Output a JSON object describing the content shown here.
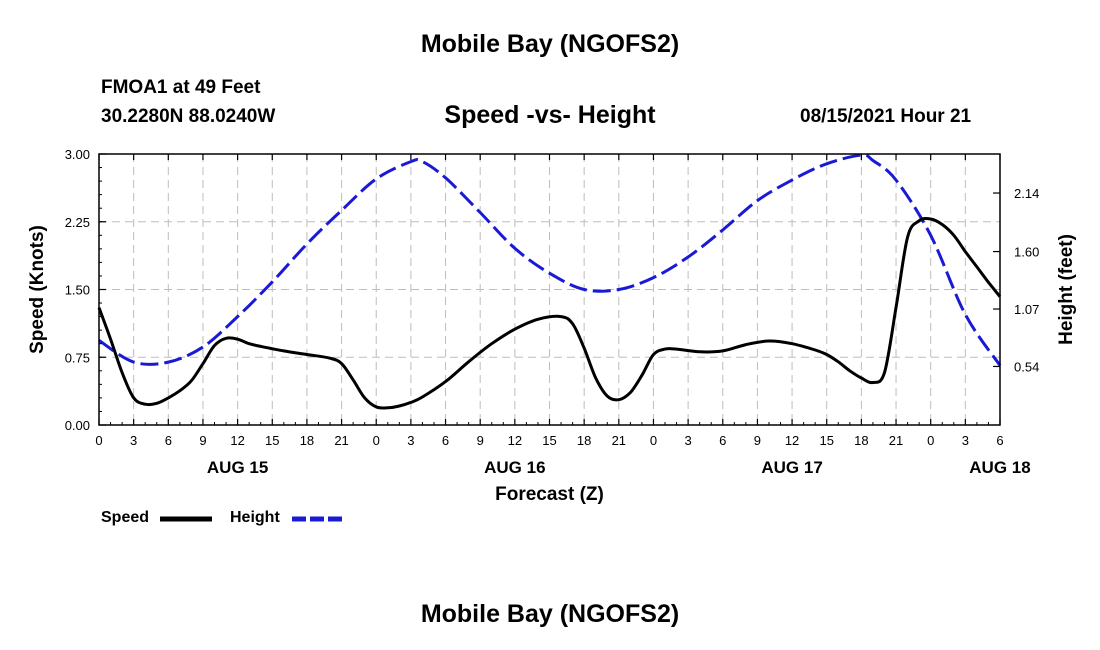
{
  "header": {
    "title": "Mobile Bay (NGOFS2)",
    "station": "FMOA1 at 49 Feet",
    "coords": "30.2280N  88.0240W",
    "subtitle": "Speed -vs- Height",
    "datetime": "08/15/2021 Hour 21",
    "footer_title": "Mobile Bay (NGOFS2)"
  },
  "chart_data": {
    "type": "line",
    "title": "Speed -vs- Height",
    "xlabel": "Forecast (Z)",
    "ylabel": "Speed (Knots)",
    "y2label": "Height (feet)",
    "x_range_hours": [
      0,
      78
    ],
    "x_start": "AUG 15 00Z",
    "x_tick_labels": [
      "0",
      "3",
      "6",
      "9",
      "12",
      "15",
      "18",
      "21",
      "0",
      "3",
      "6",
      "9",
      "12",
      "15",
      "18",
      "21",
      "0",
      "3",
      "6",
      "9",
      "12",
      "15",
      "18",
      "21",
      "0",
      "3",
      "6"
    ],
    "date_labels": [
      {
        "label": "AUG 15",
        "hour": 12
      },
      {
        "label": "AUG 16",
        "hour": 36
      },
      {
        "label": "AUG 17",
        "hour": 60
      },
      {
        "label": "AUG 18",
        "hour": 78
      }
    ],
    "ylim": [
      0,
      3
    ],
    "y_ticks": [
      "0.00",
      "0.75",
      "1.50",
      "2.25",
      "3.00"
    ],
    "y2_ticks": [
      {
        "label": "0.54",
        "value": 0.54
      },
      {
        "label": "1.07",
        "value": 1.07
      },
      {
        "label": "1.60",
        "value": 1.6
      },
      {
        "label": "2.14",
        "value": 2.14
      }
    ],
    "grid": true,
    "series": [
      {
        "name": "Speed",
        "axis": "left",
        "color": "#000000",
        "style": "solid",
        "x": [
          0,
          1,
          2,
          3,
          4,
          5,
          6,
          7,
          8,
          9,
          10,
          11,
          12,
          13,
          14,
          16,
          18,
          20,
          21,
          22,
          23,
          24,
          25,
          26,
          27,
          28,
          30,
          32,
          34,
          36,
          38,
          40,
          41,
          42,
          43,
          44,
          45,
          46,
          47,
          48,
          49,
          50,
          52,
          54,
          56,
          58,
          60,
          62,
          63,
          64,
          65,
          66,
          67,
          68,
          69,
          70,
          71,
          72,
          73,
          74,
          75,
          76,
          77,
          78
        ],
        "values": [
          1.3,
          0.95,
          0.58,
          0.3,
          0.23,
          0.24,
          0.3,
          0.38,
          0.49,
          0.68,
          0.88,
          0.96,
          0.95,
          0.9,
          0.87,
          0.82,
          0.78,
          0.74,
          0.68,
          0.5,
          0.3,
          0.2,
          0.19,
          0.21,
          0.25,
          0.31,
          0.48,
          0.7,
          0.9,
          1.06,
          1.17,
          1.2,
          1.12,
          0.85,
          0.52,
          0.32,
          0.28,
          0.36,
          0.55,
          0.78,
          0.84,
          0.84,
          0.81,
          0.82,
          0.89,
          0.93,
          0.9,
          0.83,
          0.78,
          0.7,
          0.6,
          0.52,
          0.47,
          0.58,
          1.3,
          2.08,
          2.26,
          2.28,
          2.22,
          2.1,
          1.92,
          1.75,
          1.58,
          1.42
        ]
      },
      {
        "name": "Height",
        "axis": "right",
        "color": "#1a1ad6",
        "style": "dashed",
        "x": [
          0,
          3,
          6,
          9,
          12,
          15,
          18,
          21,
          24,
          27,
          28,
          30,
          33,
          36,
          39,
          42,
          45,
          48,
          51,
          54,
          57,
          60,
          63,
          66,
          67,
          69,
          72,
          75,
          78
        ],
        "values": [
          0.78,
          0.58,
          0.58,
          0.72,
          1.0,
          1.32,
          1.67,
          1.98,
          2.27,
          2.43,
          2.43,
          2.28,
          1.96,
          1.63,
          1.4,
          1.25,
          1.25,
          1.36,
          1.55,
          1.8,
          2.07,
          2.26,
          2.41,
          2.49,
          2.44,
          2.26,
          1.75,
          1.02,
          0.55
        ]
      }
    ],
    "legend": {
      "placement": "bottom-left",
      "entries": [
        "Speed",
        "Height"
      ]
    }
  }
}
